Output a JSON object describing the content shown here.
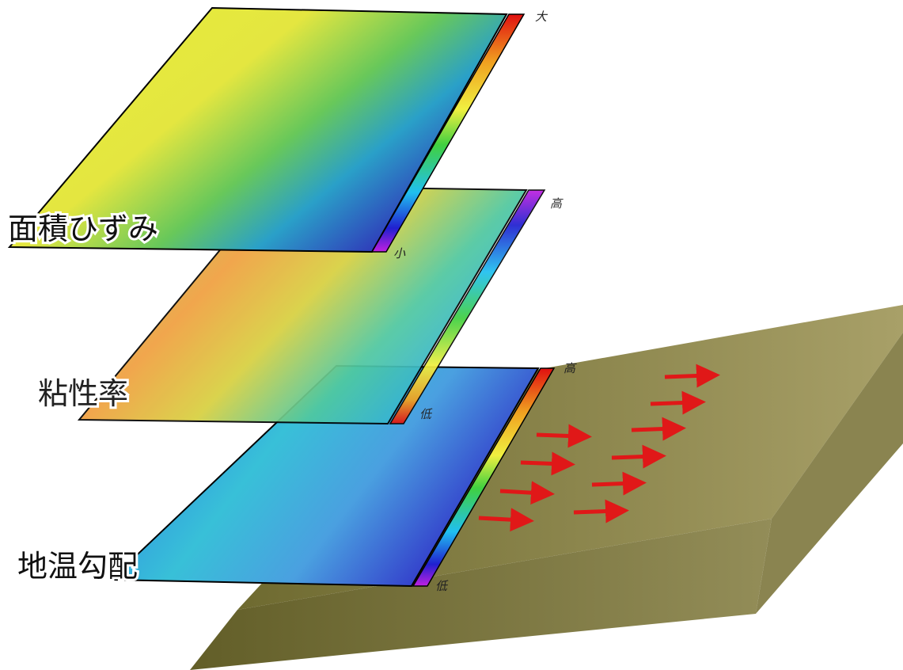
{
  "layers": [
    {
      "label": "面積ひずみ",
      "high": "大",
      "low": "小"
    },
    {
      "label": "粘性率",
      "high": "高",
      "low": "低"
    },
    {
      "label": "地温勾配",
      "high": "高",
      "low": "低"
    }
  ]
}
